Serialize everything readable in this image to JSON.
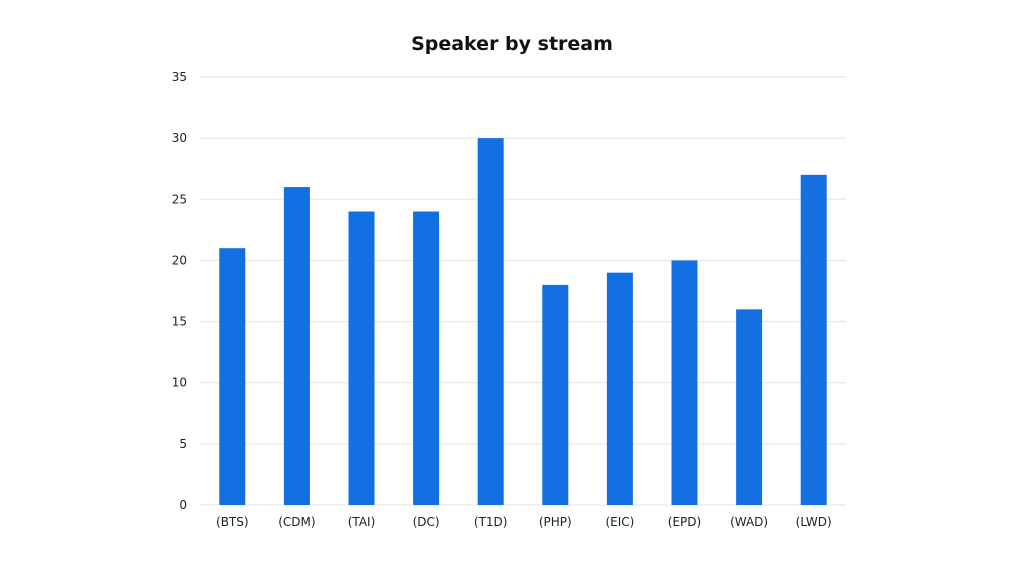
{
  "chart_data": {
    "type": "bar",
    "title": "Speaker by stream",
    "xlabel": "",
    "ylabel": "",
    "categories": [
      "(BTS)",
      "(CDM)",
      "(TAI)",
      "(DC)",
      "(T1D)",
      "(PHP)",
      "(EIC)",
      "(EPD)",
      "(WAD)",
      "(LWD)"
    ],
    "values": [
      21,
      26,
      24,
      24,
      30,
      18,
      19,
      20,
      16,
      27
    ],
    "ylim": [
      0,
      35
    ],
    "yticks": [
      0,
      5,
      10,
      15,
      20,
      25,
      30,
      35
    ],
    "grid": true,
    "legend": "none",
    "bar_color": "#1270e3"
  }
}
